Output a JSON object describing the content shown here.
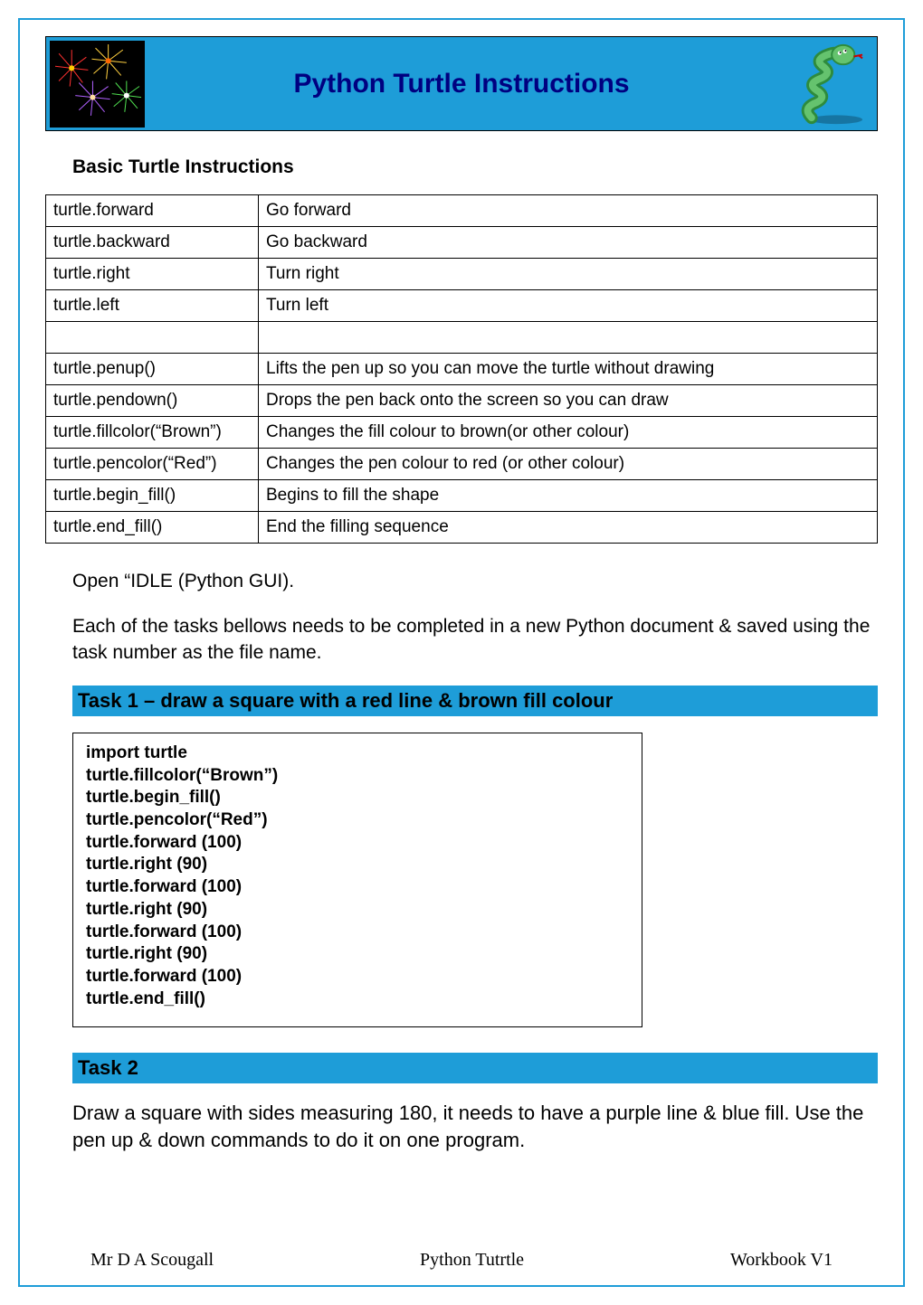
{
  "header": {
    "title": "Python Turtle Instructions"
  },
  "section_heading": "Basic Turtle Instructions",
  "table": {
    "rows": [
      {
        "cmd": "turtle.forward",
        "desc": "Go forward"
      },
      {
        "cmd": "turtle.backward",
        "desc": "Go backward"
      },
      {
        "cmd": "turtle.right",
        "desc": "Turn right"
      },
      {
        "cmd": "turtle.left",
        "desc": "Turn left"
      },
      {
        "cmd": "",
        "desc": ""
      },
      {
        "cmd": "turtle.penup()",
        "desc": "Lifts the pen up so you can move the turtle without drawing"
      },
      {
        "cmd": "turtle.pendown()",
        "desc": "Drops the pen back onto the screen so you can draw"
      },
      {
        "cmd": "turtle.fillcolor(“Brown”)",
        "desc": "Changes the fill colour to brown(or other colour)"
      },
      {
        "cmd": "turtle.pencolor(“Red”)",
        "desc": "Changes the pen colour to red (or other colour)"
      },
      {
        "cmd": "turtle.begin_fill()",
        "desc": "Begins to fill the shape"
      },
      {
        "cmd": "turtle.end_fill()",
        "desc": "End the filling sequence"
      }
    ]
  },
  "intro": {
    "p1": "Open “IDLE (Python GUI).",
    "p2": "Each of the tasks bellows needs to be completed in a new Python document & saved using the task number as the file name."
  },
  "task1": {
    "title": "Task 1 – draw a square with a red line & brown fill colour",
    "code": "import turtle\nturtle.fillcolor(“Brown”)\nturtle.begin_fill()\nturtle.pencolor(“Red”)\nturtle.forward (100)\nturtle.right (90)\nturtle.forward (100)\nturtle.right (90)\nturtle.forward (100)\nturtle.right (90)\nturtle.forward (100)\nturtle.end_fill()"
  },
  "task2": {
    "title": "Task 2",
    "text": "Draw a square with sides measuring 180, it needs to have a purple line & blue fill. Use the pen up & down commands to do it on one program."
  },
  "footer": {
    "left": "Mr D A Scougall",
    "center": "Python Tutrtle",
    "right": "Workbook V1"
  }
}
